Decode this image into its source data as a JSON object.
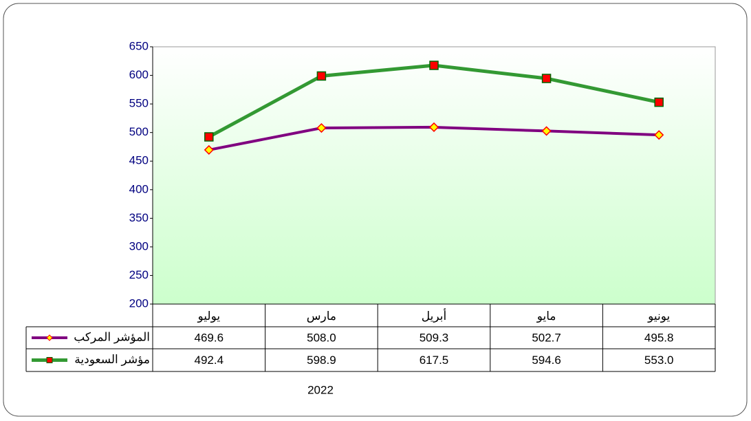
{
  "chart_data": {
    "type": "line",
    "categories": [
      "يوليو",
      "مارس",
      "أبريل",
      "مايو",
      "يونيو"
    ],
    "series": [
      {
        "name": "المؤشر المركب",
        "color": "#800080",
        "marker": "diamond",
        "marker_color": "#ffff00",
        "marker_edge": "#ff0000",
        "values": [
          469.6,
          508.0,
          509.3,
          502.7,
          495.8
        ],
        "value_labels": [
          "469.6",
          "508.0",
          "509.3",
          "502.7",
          "495.8"
        ]
      },
      {
        "name": "مؤشر السعودية",
        "color": "#339933",
        "marker": "square",
        "marker_color": "#ff0000",
        "marker_edge": "#006600",
        "values": [
          492.4,
          598.9,
          617.5,
          594.6,
          553.0
        ],
        "value_labels": [
          "492.4",
          "598.9",
          "617.5",
          "594.6",
          "553.0"
        ]
      }
    ],
    "xlabel": "2022",
    "ylim": [
      200,
      650
    ],
    "yticks": [
      200,
      250,
      300,
      350,
      400,
      450,
      500,
      550,
      600,
      650
    ],
    "grid": false
  }
}
